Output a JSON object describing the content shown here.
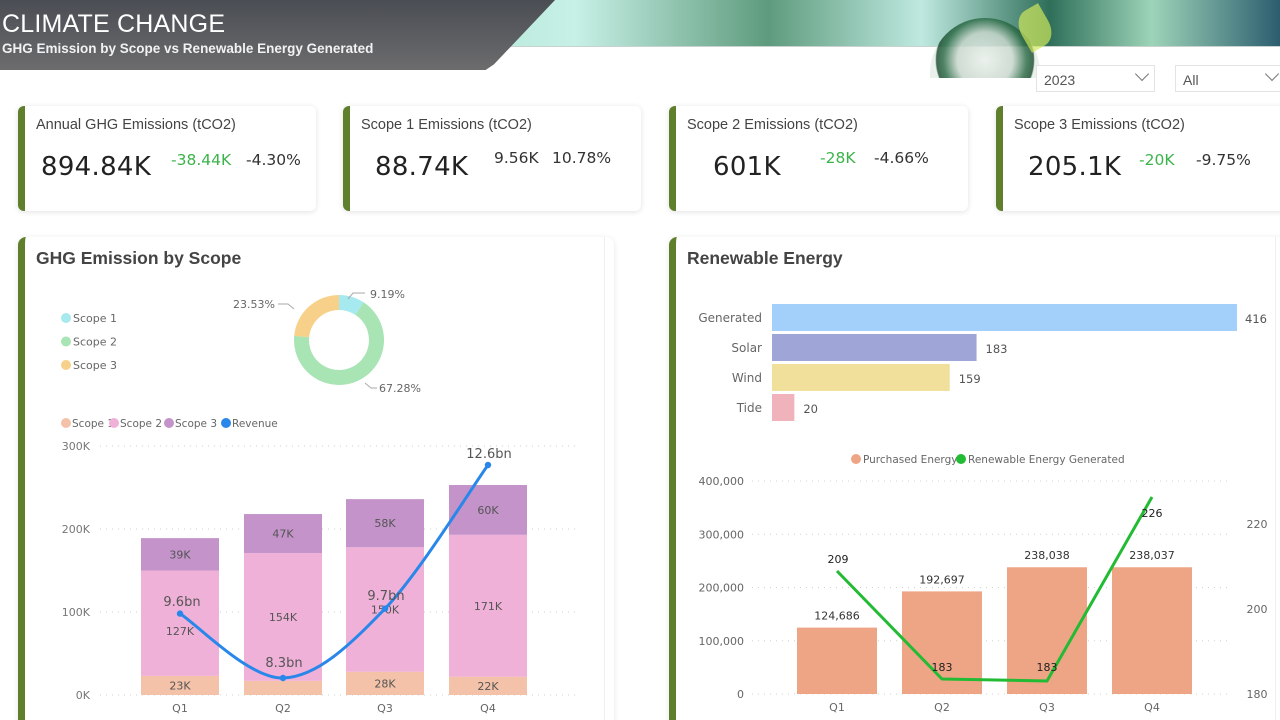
{
  "header": {
    "title": "CLIMATE CHANGE",
    "subtitle": "GHG Emission by Scope vs Renewable Energy Generated"
  },
  "filters": {
    "year": {
      "value": "2023",
      "icon": "chevron-down-icon"
    },
    "scope": {
      "value": "All",
      "icon": "chevron-down-icon"
    }
  },
  "colors": {
    "accent": "#5f7f2c",
    "positive": "#3cb44b",
    "scope1_donut": "#a6e9ee",
    "scope2_donut": "#a8e4b4",
    "scope3_donut": "#f7d08a",
    "scope1_bar": "#f4c2a8",
    "scope2_bar": "#f0b1d9",
    "scope3_bar": "#c393c9",
    "revenue": "#2a87ea",
    "generated": "#a3d0fb",
    "solar": "#a0a5d8",
    "wind": "#f0e09c",
    "tide": "#f0b3bb",
    "purchased": "#eea586",
    "renewable_line": "#22bb33"
  },
  "kpis": [
    {
      "label": "Annual GHG Emissions (tCO2)",
      "value": "894.84K",
      "delta": "-38.44K",
      "delta_color": "green",
      "pct": "-4.30%"
    },
    {
      "label": "Scope 1 Emissions (tCO2)",
      "value": "88.74K",
      "delta": "9.56K",
      "delta_color": "dark",
      "pct": "10.78%"
    },
    {
      "label": "Scope 2 Emissions (tCO2)",
      "value": "601K",
      "delta": "-28K",
      "delta_color": "green",
      "pct": "-4.66%"
    },
    {
      "label": "Scope 3 Emissions (tCO2)",
      "value": "205.1K",
      "delta": "-20K",
      "delta_color": "green",
      "pct": "-9.75%"
    }
  ],
  "ghg_panel": {
    "title": "GHG Emission by Scope"
  },
  "renewable_panel": {
    "title": "Renewable Energy"
  },
  "chart_data": [
    {
      "type": "pie",
      "variant": "donut",
      "title": "GHG Emission by Scope",
      "legend": [
        "Scope 1",
        "Scope 2",
        "Scope 3"
      ],
      "legend_position": "left",
      "categories": [
        "Scope 1",
        "Scope 2",
        "Scope 3"
      ],
      "values": [
        9.19,
        67.28,
        23.53
      ],
      "labels": [
        "9.19%",
        "67.28%",
        "23.53%"
      ]
    },
    {
      "type": "bar",
      "stacked": true,
      "title": "",
      "legend": [
        "Scope 1",
        "Scope 2",
        "Scope 3",
        "Revenue"
      ],
      "legend_position": "top-left",
      "categories": [
        "Q1",
        "Q2",
        "Q3",
        "Q4"
      ],
      "series": [
        {
          "name": "Scope 1",
          "values": [
            23,
            17,
            28,
            22
          ],
          "labels": [
            "23K",
            "",
            "28K",
            "22K"
          ]
        },
        {
          "name": "Scope 2",
          "values": [
            127,
            154,
            150,
            171
          ],
          "labels": [
            "127K",
            "154K",
            "150K",
            "171K"
          ]
        },
        {
          "name": "Scope 3",
          "values": [
            39,
            47,
            58,
            60
          ],
          "labels": [
            "39K",
            "47K",
            "58K",
            "60K"
          ]
        }
      ],
      "line_series": {
        "name": "Revenue",
        "values": [
          9.6,
          8.3,
          9.7,
          12.6
        ],
        "labels": [
          "9.6bn",
          "8.3bn",
          "9.7bn",
          "12.6bn"
        ],
        "unit": "bn",
        "smooth": true
      },
      "ylim": [
        0,
        300
      ],
      "yunit": "K",
      "yticks": [
        "0K",
        "100K",
        "200K",
        "300K"
      ],
      "grid": true
    },
    {
      "type": "bar",
      "orientation": "horizontal",
      "title": "Renewable Energy",
      "categories": [
        "Generated",
        "Solar",
        "Wind",
        "Tide"
      ],
      "values": [
        416,
        183,
        159,
        20
      ],
      "labels": [
        "416",
        "183",
        "159",
        "20"
      ],
      "xlim": [
        0,
        416
      ]
    },
    {
      "type": "bar",
      "combo": "bar-line",
      "title": "",
      "legend": [
        "Purchased Energy",
        "Renewable Energy Generated"
      ],
      "legend_position": "top-center",
      "categories": [
        "Q1",
        "Q2",
        "Q3",
        "Q4"
      ],
      "series": [
        {
          "name": "Purchased Energy",
          "values": [
            124686,
            192697,
            238038,
            238037
          ],
          "labels": [
            "124,686",
            "192,697",
            "238,038",
            "238,037"
          ]
        }
      ],
      "line_series": {
        "name": "Renewable Energy Generated",
        "values": [
          209,
          183,
          183,
          226
        ],
        "labels": [
          "209",
          "183",
          "183",
          "226"
        ]
      },
      "ylim": [
        0,
        400000
      ],
      "yticks": [
        "0",
        "100,000",
        "200,000",
        "300,000",
        "400,000"
      ],
      "y2lim": [
        180,
        230
      ],
      "y2ticks": [
        "180",
        "200",
        "220"
      ],
      "grid": true
    }
  ]
}
